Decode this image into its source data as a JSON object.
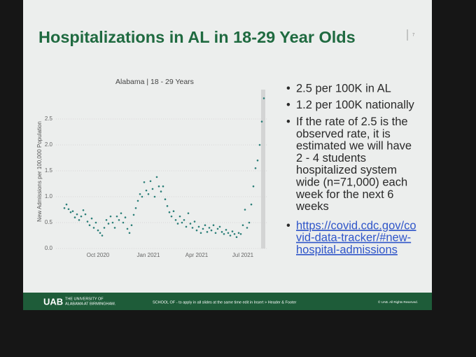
{
  "slide": {
    "title": "Hospitalizations in AL in 18-29 Year Olds",
    "page_number": "7",
    "bullets": [
      {
        "lines": [
          "2.5 per 100K in AL"
        ]
      },
      {
        "lines": [
          "1.2 per 100K nationally"
        ]
      },
      {
        "lines": [
          "If the rate of 2.5 is the",
          "observed rate, it is",
          "estimated we will have",
          "2 - 4 students",
          "hospitalized system",
          "wide (n=71,000) each",
          "week for the next 6",
          "weeks"
        ]
      }
    ],
    "link_lines": [
      "https://covid.cdc.gov/co",
      "vid-data-tracker/#new-",
      "hospital-admissions"
    ],
    "footer": {
      "logo": "UAB",
      "university": [
        "THE UNIVERSITY OF",
        "ALABAMA AT BIRMINGHAM."
      ],
      "center": "SCHOOL OF - to apply in all slides at the same time edit in Insert > Header & Footer",
      "right": "© UAB. All Rights Reserved."
    }
  },
  "chart_data": {
    "type": "dotline",
    "title": "Alabama | 18 - 29 Years",
    "y_label": "New Admissions per 100,000 Population",
    "color": "#2b7f78",
    "categories": [
      null,
      null,
      null,
      null,
      null,
      null,
      null,
      null,
      null,
      null,
      null,
      null,
      null,
      null,
      null,
      null,
      "Oct 2020",
      null,
      null,
      null,
      null,
      null,
      null,
      null,
      null,
      null,
      null,
      null,
      null,
      null,
      null,
      null,
      null,
      null,
      null,
      null,
      null,
      null,
      null,
      null,
      "Jan 2021",
      null,
      null,
      null,
      null,
      null,
      null,
      null,
      null,
      null,
      null,
      null,
      null,
      null,
      null,
      null,
      null,
      null,
      null,
      null,
      null,
      null,
      null,
      "Apr 2021",
      null,
      null,
      null,
      null,
      null,
      null,
      null,
      null,
      null,
      null,
      null,
      null,
      null,
      null,
      null,
      null,
      null,
      null,
      null,
      null,
      null,
      "Jul 2021",
      null,
      null,
      null,
      null,
      null,
      null,
      null,
      null,
      null,
      null
    ],
    "values": [
      0.78,
      0.85,
      0.76,
      0.7,
      0.72,
      0.6,
      0.66,
      0.55,
      0.62,
      0.74,
      0.66,
      0.52,
      0.45,
      0.58,
      0.4,
      0.5,
      0.35,
      0.3,
      0.25,
      0.4,
      0.55,
      0.48,
      0.62,
      0.5,
      0.4,
      0.62,
      0.55,
      0.68,
      0.5,
      0.6,
      0.38,
      0.3,
      0.45,
      0.65,
      0.78,
      0.92,
      1.05,
      1.0,
      1.28,
      1.12,
      1.05,
      1.3,
      1.15,
      1.0,
      1.38,
      1.2,
      1.1,
      1.2,
      0.95,
      0.82,
      0.7,
      0.62,
      0.72,
      0.55,
      0.48,
      0.62,
      0.5,
      0.55,
      0.42,
      0.68,
      0.48,
      0.4,
      0.52,
      0.35,
      0.42,
      0.3,
      0.38,
      0.45,
      0.32,
      0.4,
      0.35,
      0.45,
      0.3,
      0.38,
      0.42,
      0.32,
      0.28,
      0.36,
      0.3,
      0.25,
      0.33,
      0.28,
      0.22,
      0.3,
      0.28,
      0.45,
      0.75,
      0.4,
      0.5,
      0.85,
      1.2,
      1.55,
      1.7,
      2.0,
      2.45,
      2.9
    ],
    "ylim": [
      0,
      3.0
    ],
    "yticks": [
      {
        "value": 0,
        "label": "0.0"
      },
      0.5,
      {
        "value": 1,
        "label": "1.0"
      },
      1.5,
      {
        "value": 2,
        "label": "2.0"
      },
      2.5
    ],
    "grid": true
  }
}
